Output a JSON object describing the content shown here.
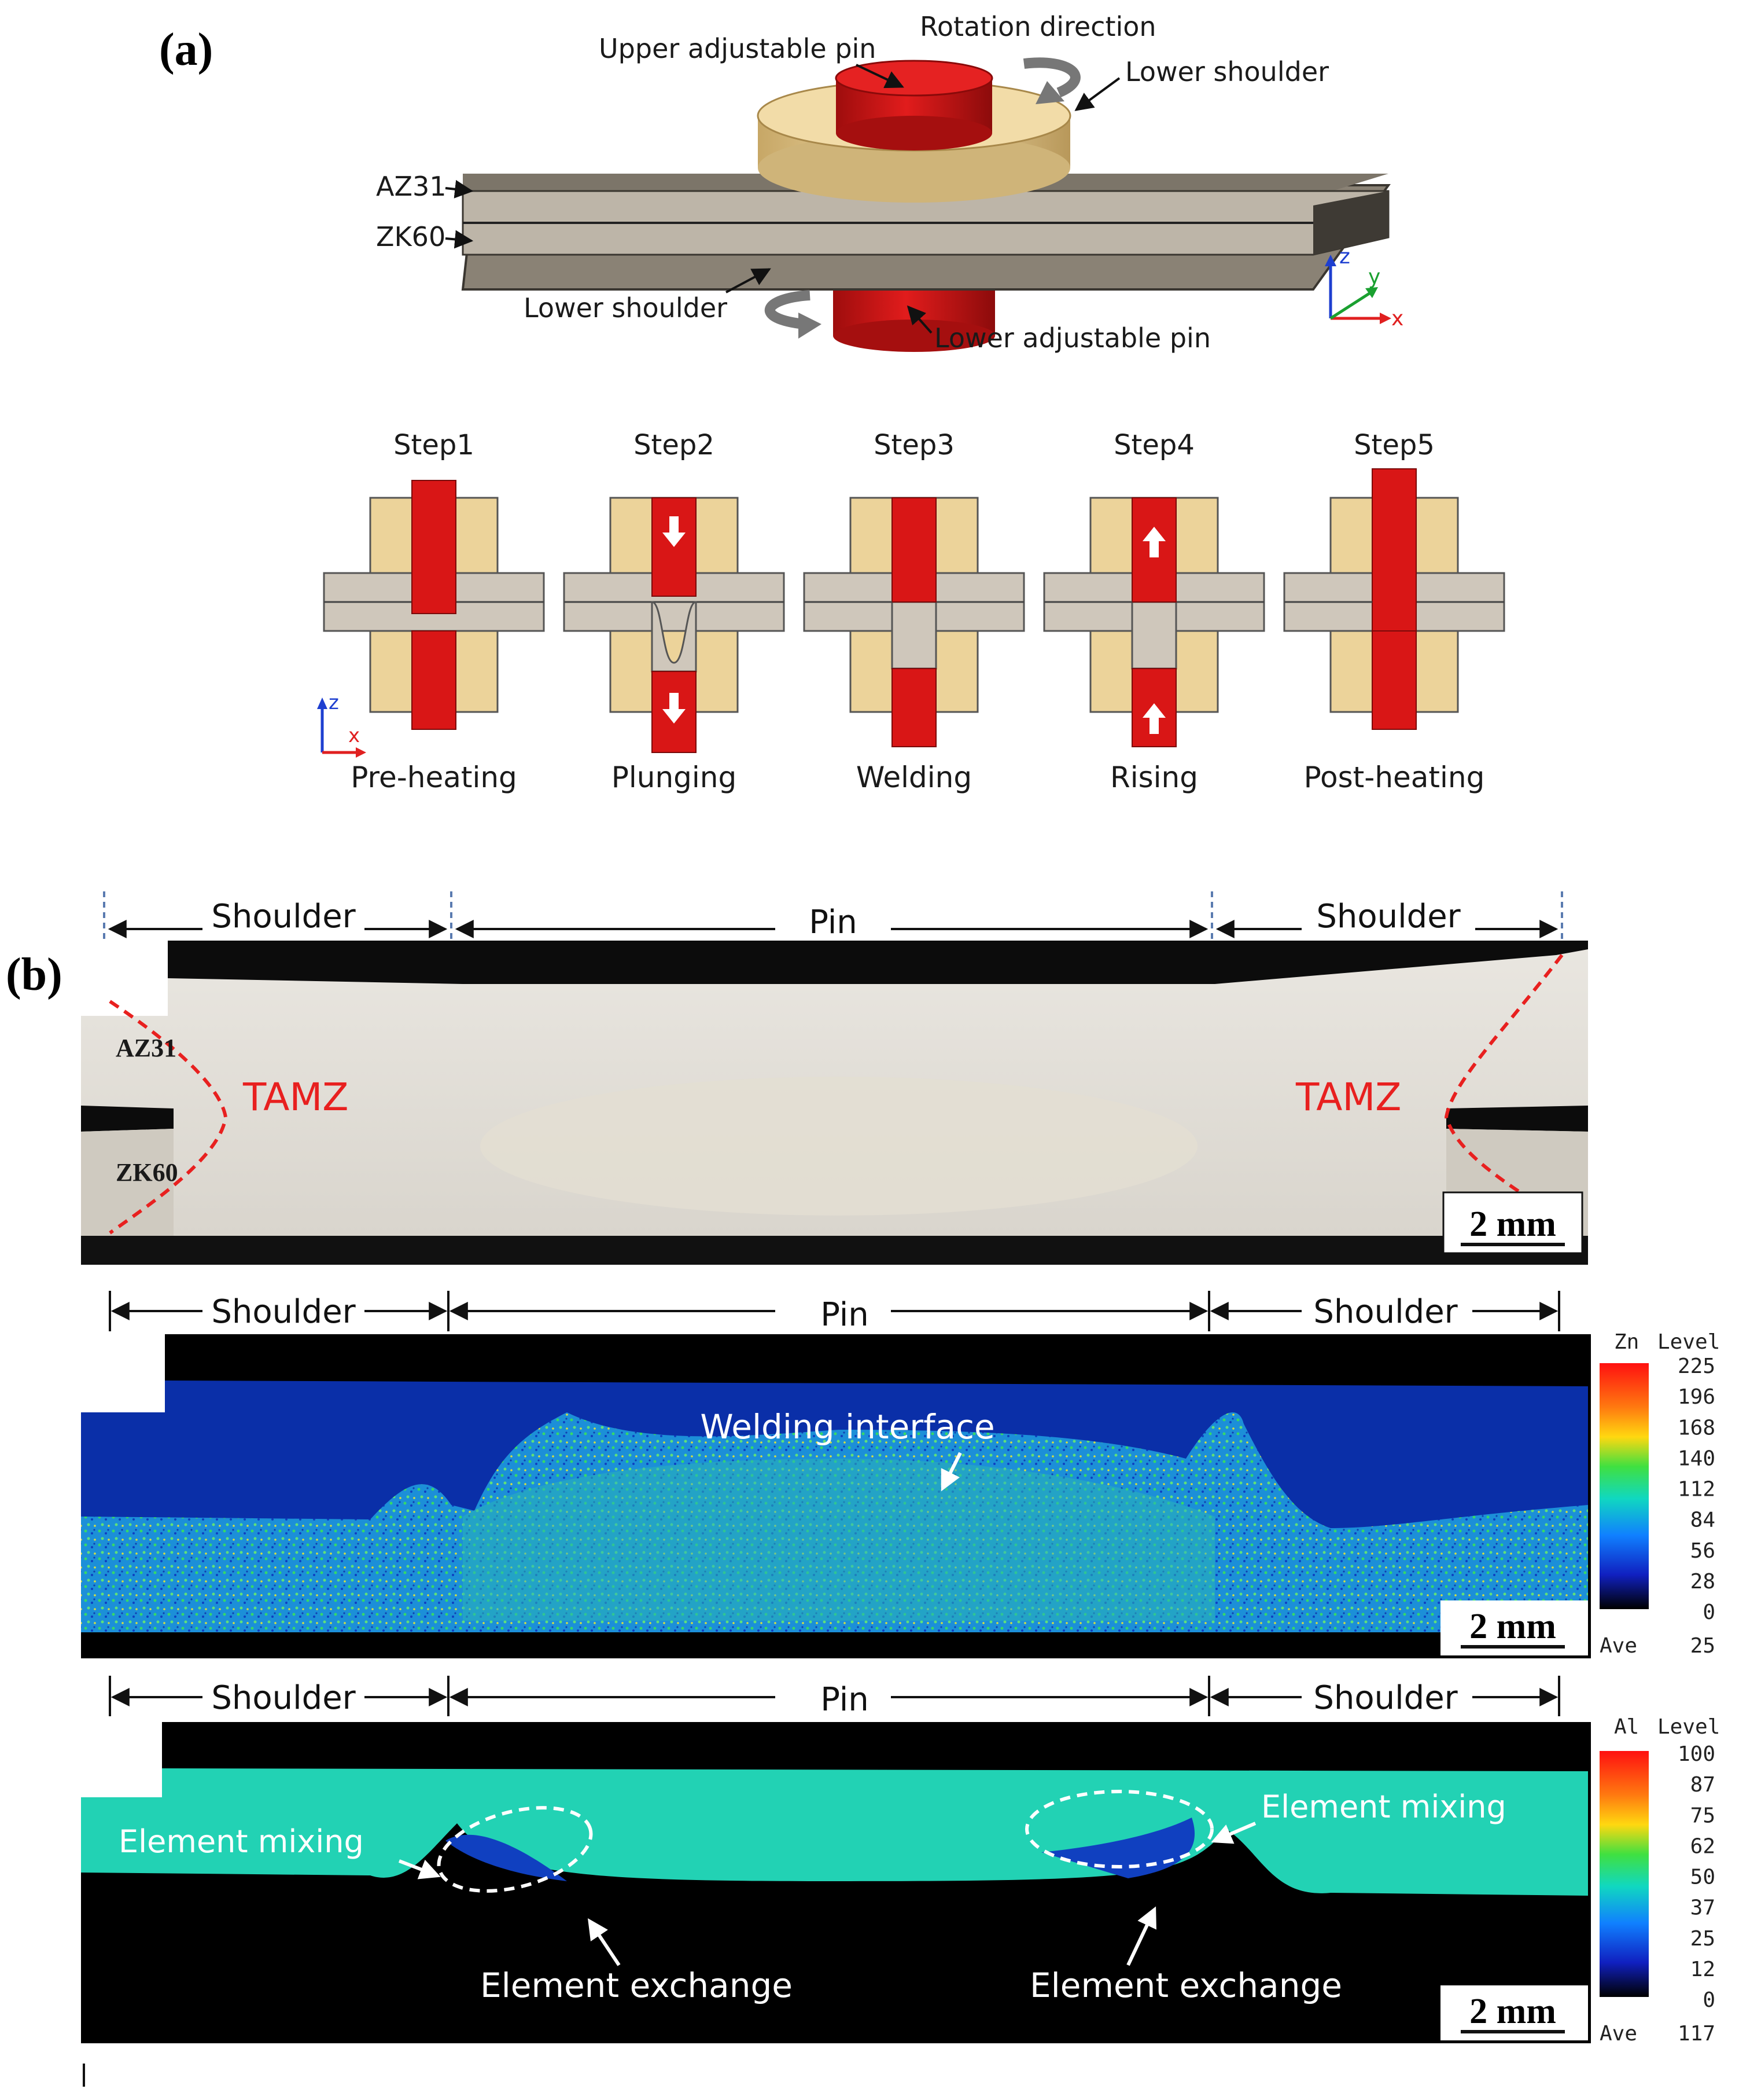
{
  "panel_a": {
    "label": "(a)",
    "upper_pin": "Upper adjustable pin",
    "rotation": "Rotation direction",
    "lower_shoulder_top": "Lower shoulder",
    "az31": "AZ31",
    "zk60": "ZK60",
    "lower_shoulder_bottom": "Lower shoulder",
    "lower_pin": "Lower adjustable pin",
    "axis3d": {
      "z": "z",
      "y": "y",
      "x": "x"
    },
    "axis2d": {
      "z": "z",
      "x": "x"
    },
    "steps": [
      {
        "title": "Step1",
        "caption": "Pre-heating"
      },
      {
        "title": "Step2",
        "caption": "Plunging"
      },
      {
        "title": "Step3",
        "caption": "Welding"
      },
      {
        "title": "Step4",
        "caption": "Rising"
      },
      {
        "title": "Step5",
        "caption": "Post-heating"
      }
    ]
  },
  "panel_b": {
    "label": "(b)",
    "region_shoulder": "Shoulder",
    "region_pin": "Pin",
    "optical": {
      "az31": "AZ31",
      "zk60": "ZK60",
      "tamz_left": "TAMZ",
      "tamz_right": "TAMZ",
      "scale": "2 mm"
    },
    "zn_map": {
      "annotation": "Welding interface",
      "scale": "2 mm",
      "legend_element": "Zn",
      "legend_title": "Level",
      "levels": [
        "225",
        "196",
        "168",
        "140",
        "112",
        "84",
        "56",
        "28",
        "0"
      ],
      "ave_label": "Ave",
      "ave_value": "25"
    },
    "al_map": {
      "mixing_left": "Element mixing",
      "mixing_right": "Element mixing",
      "exchange_left": "Element exchange",
      "exchange_right": "Element exchange",
      "scale": "2 mm",
      "legend_element": "Al",
      "legend_title": "Level",
      "levels": [
        "100",
        "87",
        "75",
        "62",
        "50",
        "37",
        "25",
        "12",
        "0"
      ],
      "ave_label": "Ave",
      "ave_value": "117"
    }
  },
  "colors": {
    "pin_red": "#d91616",
    "shoulder_tan": "#ecd39a",
    "plate_gray": "#cfc7bb",
    "tamz_red": "#e8201f",
    "map_blue": "#0a2fa8",
    "map_cyan": "#20d6c0"
  }
}
